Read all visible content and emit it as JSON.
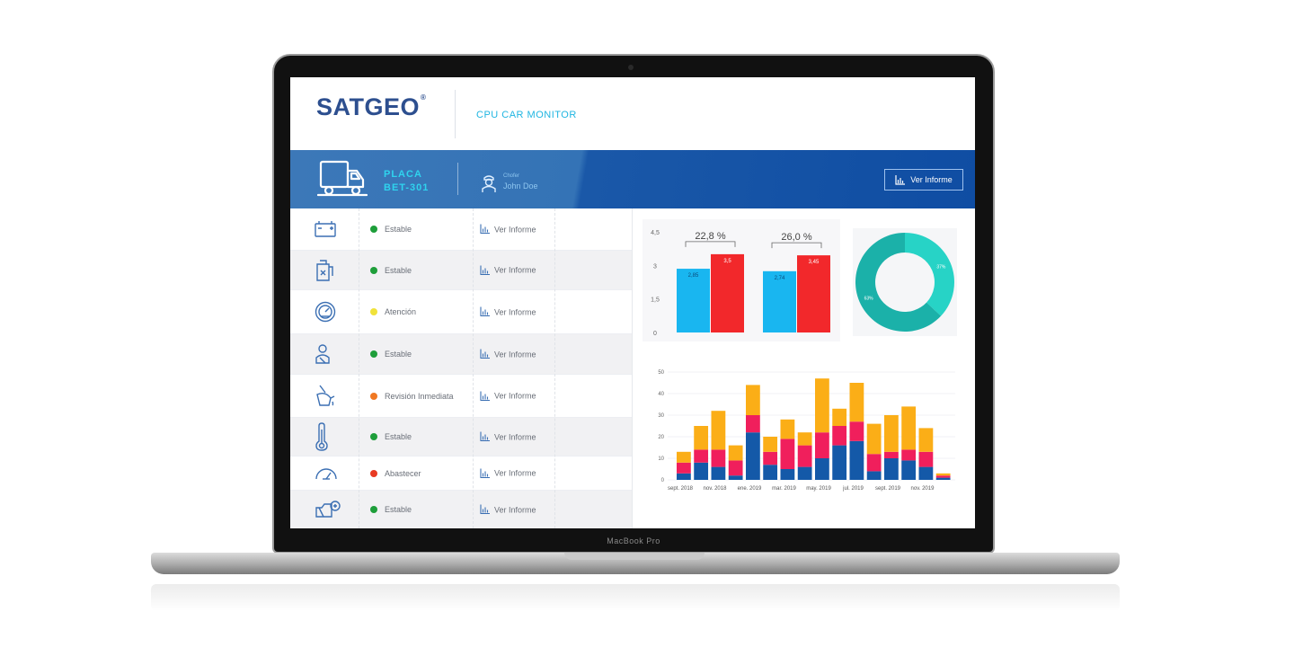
{
  "device": {
    "bezel_label": "MacBook Pro"
  },
  "app": {
    "logo_text": "SATGEO",
    "logo_mark": "®",
    "title": "CPU CAR MONITOR"
  },
  "banner": {
    "plate_label": "PLACA",
    "plate_value": "BET-301",
    "driver_label": "Chofer",
    "driver_name": "John Doe",
    "report_button": "Ver Informe"
  },
  "colors": {
    "stable": "#1e9e3a",
    "attention": "#f0e23a",
    "review": "#f07822",
    "refuel": "#e83a22",
    "bar_cyan": "#19b6f0",
    "bar_red": "#f2282b",
    "donut_main": "#1bb1a9",
    "donut_light": "#27d3c6",
    "stack_blue": "#1459a8",
    "stack_pink": "#f01f5c",
    "stack_orange": "#fbae17"
  },
  "status_rows": [
    {
      "icon": "battery-icon",
      "status": "Estable",
      "status_color": "stable",
      "report": "Ver Informe"
    },
    {
      "icon": "fuel-icon",
      "status": "Estable",
      "status_color": "stable",
      "report": "Ver Informe"
    },
    {
      "icon": "speedometer-icon",
      "status": "Atención",
      "status_color": "attention",
      "report": "Ver Informe"
    },
    {
      "icon": "driver-seat-icon",
      "status": "Estable",
      "status_color": "stable",
      "report": "Ver Informe"
    },
    {
      "icon": "oil-icon",
      "status": "Revisión Inmediata",
      "status_color": "review",
      "report": "Ver Informe"
    },
    {
      "icon": "thermometer-icon",
      "status": "Estable",
      "status_color": "stable",
      "report": "Ver Informe"
    },
    {
      "icon": "gauge-icon",
      "status": "Abastecer",
      "status_color": "refuel",
      "report": "Ver Informe"
    },
    {
      "icon": "engine-check-icon",
      "status": "Estable",
      "status_color": "stable",
      "report": "Ver Informe"
    }
  ],
  "chart_data": [
    {
      "type": "bar",
      "categories": [
        "",
        ""
      ],
      "series": [
        {
          "values": [
            2.85,
            2.74
          ]
        },
        {
          "values": [
            3.5,
            3.45
          ]
        }
      ],
      "data_labels": [
        [
          "2,85",
          "3,5"
        ],
        [
          "2,74",
          "3,45"
        ]
      ],
      "group_annotations": [
        "22,8 %",
        "26,0 %"
      ],
      "yticks": [
        "0",
        "1,5",
        "3",
        "4,5"
      ],
      "ylim": [
        0,
        4.5
      ]
    },
    {
      "type": "pie",
      "donut": true,
      "values": [
        37,
        63
      ],
      "labels": [
        "37%",
        "63%"
      ]
    },
    {
      "type": "bar",
      "stacked": true,
      "x_tick_labels": [
        "sept. 2018",
        "nov. 2018",
        "ene. 2019",
        "mar. 2019",
        "may. 2019",
        "jul. 2019",
        "sept. 2019",
        "nov. 2019"
      ],
      "series": [
        {
          "values": [
            3,
            8,
            6,
            2,
            22,
            7,
            5,
            6,
            10,
            16,
            18,
            4,
            10,
            9,
            6,
            1
          ]
        },
        {
          "values": [
            5,
            6,
            8,
            7,
            8,
            6,
            14,
            10,
            12,
            9,
            9,
            8,
            3,
            5,
            7,
            1
          ]
        },
        {
          "values": [
            5,
            11,
            18,
            7,
            14,
            7,
            9,
            6,
            25,
            8,
            18,
            14,
            17,
            20,
            11,
            1
          ]
        }
      ],
      "yticks": [
        "0",
        "10",
        "20",
        "30",
        "40",
        "50"
      ],
      "ylim": [
        0,
        50
      ],
      "grid": true
    }
  ]
}
